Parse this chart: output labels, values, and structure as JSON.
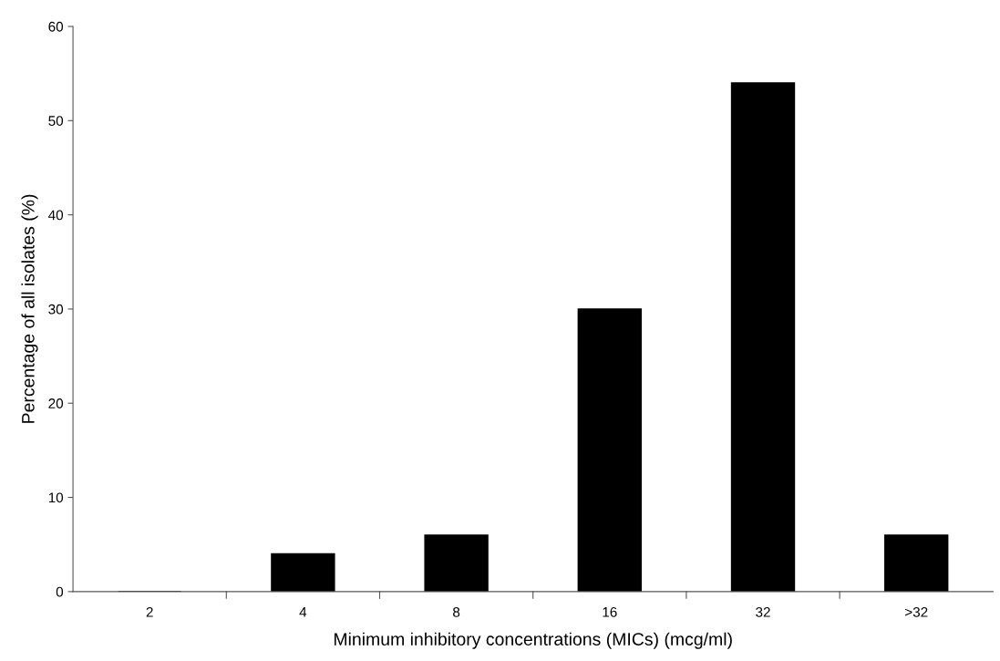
{
  "chart_data": {
    "type": "bar",
    "xlabel": "Minimum inhibitory concentrations (MICs) (mcg/ml)",
    "ylabel": "Percentage of all isolates (%)",
    "categories": [
      "2",
      "4",
      "8",
      "16",
      "32",
      ">32"
    ],
    "values": [
      0,
      4,
      6,
      30,
      54,
      6
    ],
    "color": "#000000",
    "ylim": [
      0,
      60
    ],
    "yticks": [
      0,
      10,
      20,
      30,
      40,
      50,
      60
    ],
    "grid": false,
    "legend": false
  }
}
